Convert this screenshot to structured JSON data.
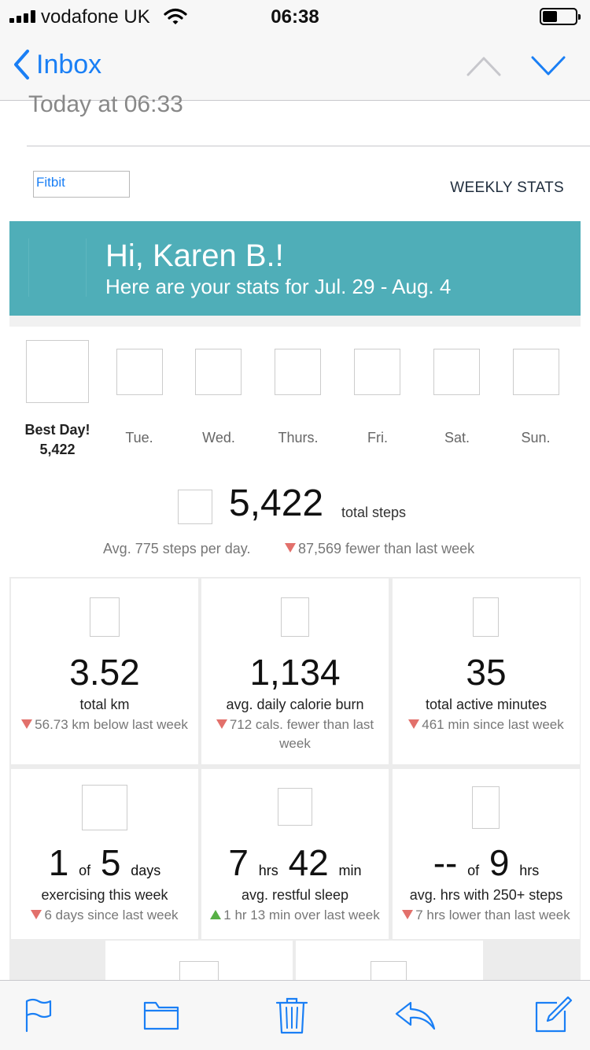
{
  "status_bar": {
    "carrier": "vodafone UK",
    "time": "06:38",
    "icons": [
      "signal-icon",
      "wifi-icon",
      "battery-icon"
    ]
  },
  "nav": {
    "back_label": "Inbox",
    "icons": [
      "chevron-left-icon",
      "chevron-up-icon",
      "chevron-down-icon"
    ]
  },
  "email": {
    "date": "Today at 06:33",
    "logo_alt": "Fitbit",
    "header_right": "WEEKLY STATS"
  },
  "banner": {
    "greeting": "Hi, Karen B.!",
    "subtitle": "Here are your stats for Jul. 29 - Aug. 4",
    "color": "#4faeb8"
  },
  "week": {
    "best_day_label": "Best Day!",
    "best_day_value": "5,422",
    "days": [
      "Tue.",
      "Wed.",
      "Thurs.",
      "Fri.",
      "Sat.",
      "Sun."
    ]
  },
  "steps": {
    "value": "5,422",
    "unit": "total steps",
    "average": "Avg. 775 steps per day.",
    "diff": "87,569 fewer than last week"
  },
  "stats": [
    {
      "value": "3.52",
      "label": "total km",
      "diff": "56.73 km below last week",
      "trend": "down"
    },
    {
      "value": "1,134",
      "label": "avg. daily calorie burn",
      "diff": "712 cals. fewer than last week",
      "trend": "down"
    },
    {
      "value": "35",
      "label": "total active minutes",
      "diff": "461 min since last week",
      "trend": "down"
    },
    {
      "value_a": "1",
      "unit_a": "of",
      "value_b": "5",
      "unit_b": "days",
      "label": "exercising this week",
      "diff": "6 days since last week",
      "trend": "down"
    },
    {
      "value_a": "7",
      "unit_a": "hrs",
      "value_b": "42",
      "unit_b": "min",
      "label": "avg. restful sleep",
      "diff": "1 hr 13 min over last week",
      "trend": "up"
    },
    {
      "value_a": "--",
      "unit_a": "of",
      "value_b": "9",
      "unit_b": "hrs",
      "label": "avg. hrs with 250+ steps",
      "diff": "7 hrs lower than last week",
      "trend": "down"
    }
  ],
  "colors": {
    "accent": "#1a7ff5",
    "down": "#e2706b",
    "up": "#57b046"
  },
  "toolbar": {
    "icons": [
      "flag-icon",
      "folder-icon",
      "trash-icon",
      "reply-icon",
      "compose-icon"
    ]
  }
}
